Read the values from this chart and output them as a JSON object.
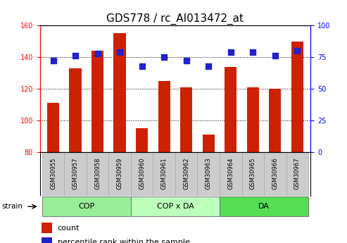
{
  "title": "GDS778 / rc_AI013472_at",
  "categories": [
    "GSM30955",
    "GSM30957",
    "GSM30958",
    "GSM30959",
    "GSM30960",
    "GSM30961",
    "GSM30962",
    "GSM30963",
    "GSM30964",
    "GSM30965",
    "GSM30966",
    "GSM30967"
  ],
  "bar_values": [
    111,
    133,
    144,
    155,
    95,
    125,
    121,
    91,
    134,
    121,
    120,
    150
  ],
  "dot_values_pct": [
    72,
    76,
    78,
    79,
    68,
    75,
    72,
    68,
    79,
    79,
    76,
    80
  ],
  "bar_color": "#cc2200",
  "dot_color": "#2222cc",
  "ylim_left": [
    80,
    160
  ],
  "ylim_right": [
    0,
    100
  ],
  "yticks_left": [
    80,
    100,
    120,
    140,
    160
  ],
  "yticks_right": [
    0,
    25,
    50,
    75,
    100
  ],
  "groups": [
    {
      "label": "COP",
      "start": 0,
      "end": 4,
      "color": "#99ee99"
    },
    {
      "label": "COP x DA",
      "start": 4,
      "end": 8,
      "color": "#bbffbb"
    },
    {
      "label": "DA",
      "start": 8,
      "end": 12,
      "color": "#55dd55"
    }
  ],
  "legend_count_label": "count",
  "legend_pct_label": "percentile rank within the sample",
  "strain_label": "strain",
  "gray_box_color": "#cccccc",
  "gray_box_edge": "#aaaaaa",
  "title_fontsize": 11,
  "tick_fontsize": 7,
  "label_fontsize": 8
}
